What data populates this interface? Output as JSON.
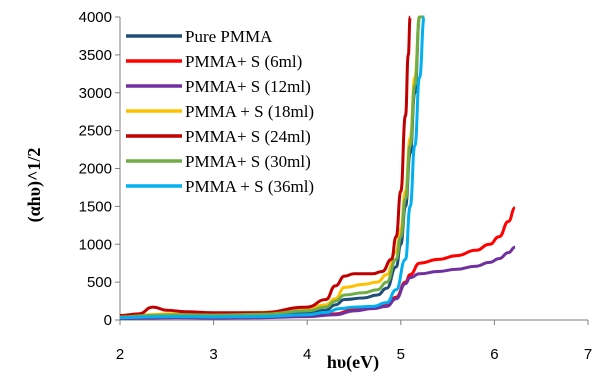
{
  "chart_data": {
    "type": "line",
    "title": "",
    "xlabel": "hυ(eV)",
    "ylabel": "(αhυ)^1/2",
    "xlim": [
      2,
      7
    ],
    "ylim": [
      0,
      4000
    ],
    "x_ticks": [
      2,
      3,
      4,
      5,
      6,
      7
    ],
    "y_ticks": [
      0,
      500,
      1000,
      1500,
      2000,
      2500,
      3000,
      3500,
      4000
    ],
    "grid": false,
    "legend_position": "top-left",
    "series": [
      {
        "name": "Pure PMMA",
        "color": "#1f4e79",
        "x": [
          2.0,
          2.3,
          2.6,
          3.0,
          3.5,
          4.0,
          4.2,
          4.3,
          4.4,
          4.6,
          4.75,
          4.85,
          4.95,
          5.0,
          5.05,
          5.1,
          5.15,
          5.2,
          5.25
        ],
        "y": [
          40,
          50,
          55,
          50,
          55,
          90,
          130,
          200,
          270,
          290,
          330,
          420,
          700,
          1000,
          1500,
          2200,
          3000,
          4000,
          4000
        ]
      },
      {
        "name": "PMMA+ S (6ml)",
        "color": "#ff0000",
        "x": [
          2.0,
          2.3,
          2.6,
          3.0,
          3.5,
          4.0,
          4.3,
          4.5,
          4.7,
          4.85,
          4.95,
          5.05,
          5.1,
          5.2,
          5.4,
          5.6,
          5.8,
          5.95,
          6.05,
          6.15,
          6.22
        ],
        "y": [
          20,
          30,
          35,
          30,
          35,
          50,
          80,
          140,
          170,
          200,
          300,
          500,
          600,
          750,
          800,
          850,
          920,
          1000,
          1100,
          1300,
          1480
        ]
      },
      {
        "name": "PMMA+ S (12ml)",
        "color": "#7030a0",
        "x": [
          2.0,
          2.3,
          2.6,
          3.0,
          3.5,
          4.0,
          4.3,
          4.5,
          4.7,
          4.85,
          4.95,
          5.05,
          5.1,
          5.2,
          5.4,
          5.6,
          5.8,
          5.95,
          6.05,
          6.15,
          6.22
        ],
        "y": [
          20,
          25,
          30,
          25,
          30,
          45,
          70,
          120,
          150,
          180,
          280,
          480,
          560,
          610,
          640,
          670,
          710,
          760,
          810,
          890,
          960
        ]
      },
      {
        "name": "PMMA + S (18ml)",
        "color": "#ffc000",
        "x": [
          2.0,
          2.3,
          2.6,
          3.0,
          3.5,
          4.0,
          4.2,
          4.3,
          4.4,
          4.6,
          4.75,
          4.85,
          4.95,
          5.0,
          5.05,
          5.1,
          5.15,
          5.2,
          5.25
        ],
        "y": [
          50,
          70,
          85,
          80,
          100,
          150,
          200,
          280,
          430,
          470,
          500,
          600,
          900,
          1200,
          1700,
          2400,
          3200,
          4000,
          4000
        ]
      },
      {
        "name": "PMMA+ S (24ml)",
        "color": "#c00000",
        "x": [
          2.0,
          2.2,
          2.35,
          2.5,
          2.7,
          3.0,
          3.5,
          4.0,
          4.2,
          4.3,
          4.4,
          4.5,
          4.7,
          4.8,
          4.9,
          4.95,
          5.0,
          5.05,
          5.08,
          5.1
        ],
        "y": [
          60,
          80,
          170,
          130,
          110,
          95,
          95,
          170,
          270,
          450,
          580,
          610,
          610,
          640,
          800,
          1100,
          1700,
          2700,
          3500,
          4000
        ]
      },
      {
        "name": "PMMA+ S (30ml)",
        "color": "#70ad47",
        "x": [
          2.0,
          2.3,
          2.6,
          3.0,
          3.5,
          4.0,
          4.2,
          4.3,
          4.4,
          4.6,
          4.75,
          4.85,
          4.95,
          5.0,
          5.05,
          5.1,
          5.15,
          5.2,
          5.25
        ],
        "y": [
          40,
          60,
          70,
          65,
          75,
          120,
          170,
          250,
          330,
          360,
          400,
          500,
          800,
          1100,
          1600,
          2300,
          3100,
          4000,
          4000
        ]
      },
      {
        "name": "PMMA + S (36ml)",
        "color": "#00b0f0",
        "x": [
          2.0,
          2.3,
          2.6,
          3.0,
          3.5,
          4.0,
          4.2,
          4.35,
          4.5,
          4.7,
          4.85,
          4.95,
          5.05,
          5.1,
          5.15,
          5.2,
          5.25
        ],
        "y": [
          30,
          40,
          45,
          40,
          45,
          70,
          100,
          150,
          170,
          180,
          230,
          400,
          800,
          1500,
          2300,
          3200,
          4000
        ]
      }
    ]
  }
}
